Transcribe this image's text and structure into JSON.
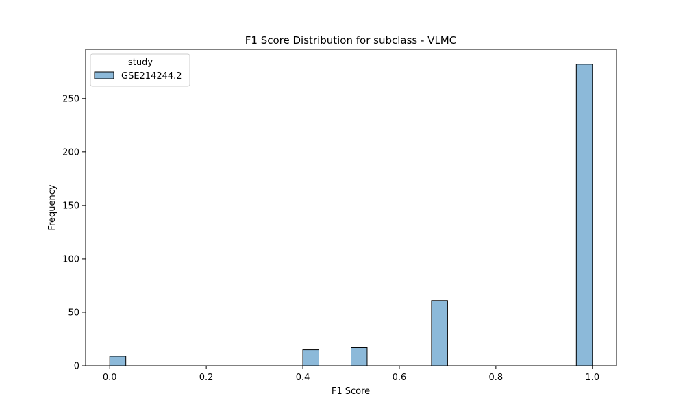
{
  "chart_data": {
    "type": "bar",
    "title": "F1 Score Distribution for subclass - VLMC",
    "xlabel": "F1 Score",
    "ylabel": "Frequency",
    "xlim": [
      -0.05,
      1.05
    ],
    "ylim": [
      0,
      296
    ],
    "x_ticks": [
      "0.0",
      "0.2",
      "0.4",
      "0.6",
      "0.8",
      "1.0"
    ],
    "y_ticks": [
      "0",
      "50",
      "100",
      "150",
      "200",
      "250"
    ],
    "bin_width": 0.0333,
    "bins": [
      {
        "start": 0.0,
        "end": 0.0333,
        "count": 9
      },
      {
        "start": 0.4,
        "end": 0.4333,
        "count": 15
      },
      {
        "start": 0.5,
        "end": 0.5333,
        "count": 17
      },
      {
        "start": 0.6667,
        "end": 0.7,
        "count": 61
      },
      {
        "start": 0.9667,
        "end": 1.0,
        "count": 282
      }
    ],
    "legend": {
      "title": "study",
      "entries": [
        "GSE214244.2"
      ],
      "position": "top-left"
    },
    "bar_color": "#8cb9d9",
    "edge_color": "#000000",
    "grid": false
  }
}
